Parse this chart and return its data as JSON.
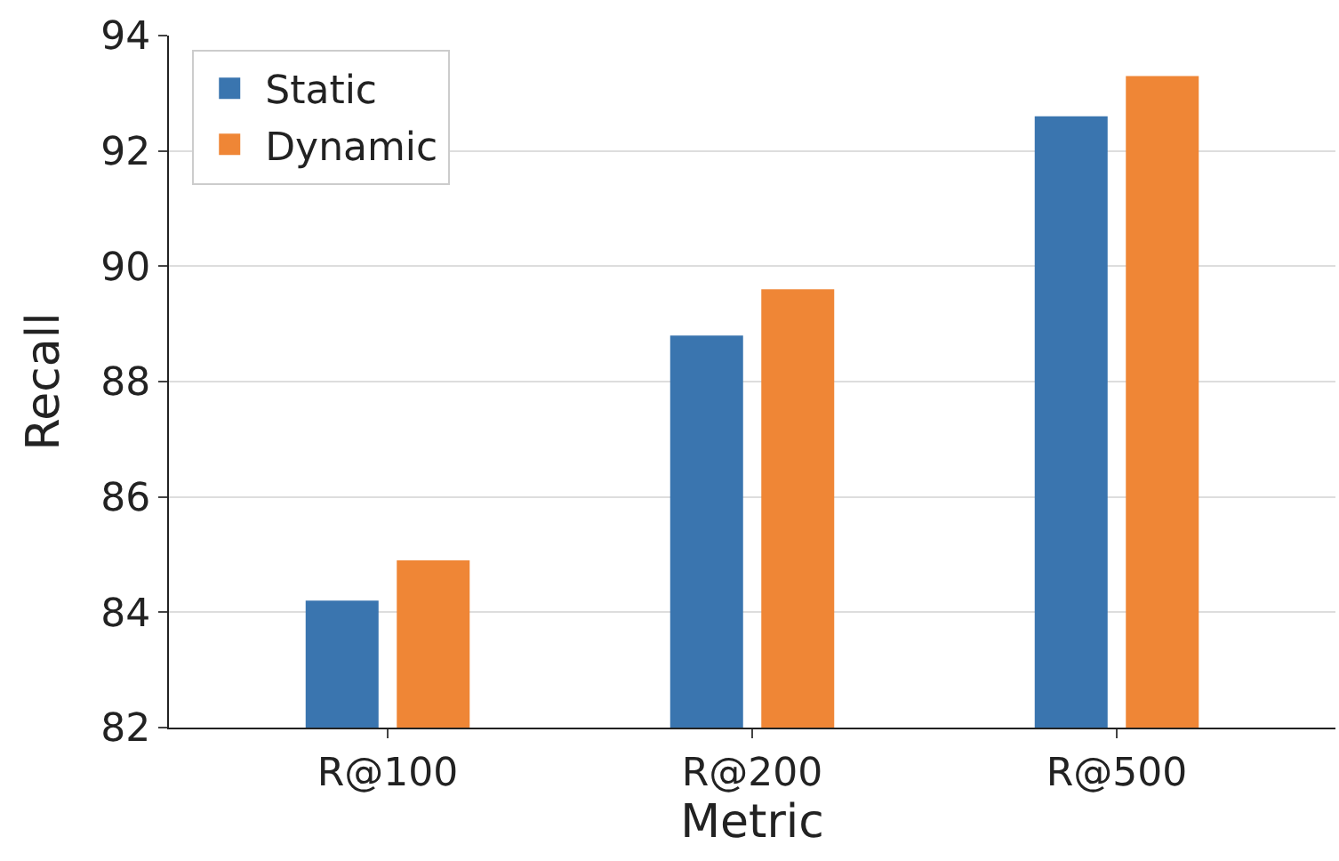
{
  "chart_data": {
    "type": "bar",
    "xlabel": "Metric",
    "ylabel": "Recall",
    "categories": [
      "R@100",
      "R@200",
      "R@500"
    ],
    "series": [
      {
        "name": "Static",
        "color": "#3a75af",
        "values": [
          84.2,
          88.8,
          92.6
        ]
      },
      {
        "name": "Dynamic",
        "color": "#ef8636",
        "values": [
          84.9,
          89.6,
          93.3
        ]
      }
    ],
    "ylim": [
      82,
      94
    ],
    "yticks": [
      82,
      84,
      86,
      88,
      90,
      92,
      94
    ],
    "grid": "y",
    "legend": "top left"
  }
}
